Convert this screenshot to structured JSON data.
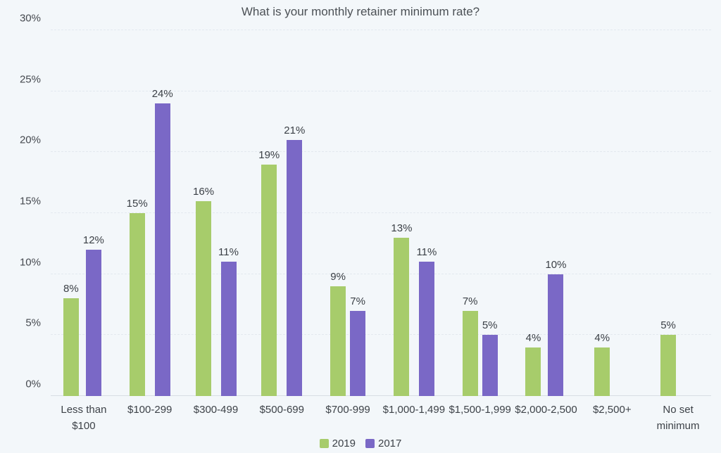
{
  "chart_data": {
    "type": "bar",
    "title": "What is your monthly retainer minimum rate?",
    "categories": [
      "Less than $100",
      "$100-299",
      "$300-499",
      "$500-699",
      "$700-999",
      "$1,000-1,499",
      "$1,500-1,999",
      "$2,000-2,500",
      "$2,500+",
      "No set minimum"
    ],
    "series": [
      {
        "name": "2019",
        "color": "#a7cc6b",
        "values": [
          8,
          15,
          16,
          19,
          9,
          13,
          7,
          4,
          4,
          5
        ]
      },
      {
        "name": "2017",
        "color": "#7a68c6",
        "values": [
          12,
          24,
          11,
          21,
          7,
          11,
          5,
          10,
          null,
          null
        ]
      }
    ],
    "value_suffix": "%",
    "ylabel": "",
    "xlabel": "",
    "ylim": [
      0,
      30
    ],
    "y_ticks": [
      0,
      5,
      10,
      15,
      20,
      25,
      30
    ],
    "y_tick_labels": [
      "0%",
      "5%",
      "10%",
      "15%",
      "20%",
      "25%",
      "30%"
    ],
    "grid": "horizontal-dashed",
    "legend_position": "bottom-center",
    "background_color": "#f3f7fa",
    "grid_color": "#e3e9ef",
    "axis_color": "#d8dde3",
    "text_color": "#3d4248"
  }
}
